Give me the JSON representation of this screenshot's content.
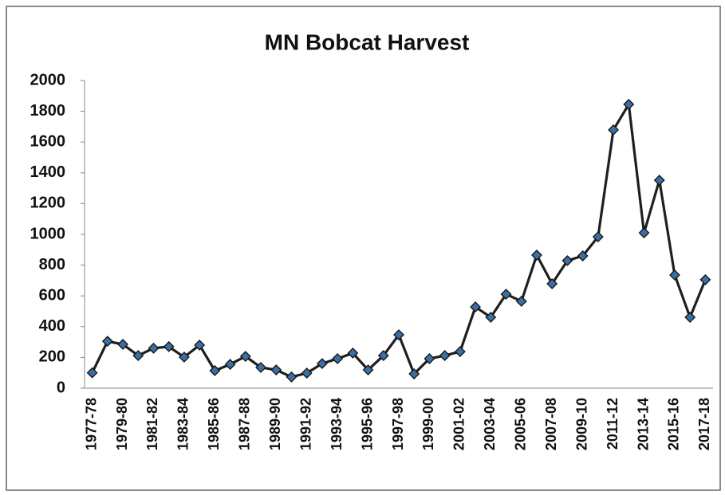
{
  "chart_data": {
    "type": "line",
    "title": "MN Bobcat Harvest",
    "categories": [
      "1977-78",
      null,
      "1979-80",
      null,
      "1981-82",
      null,
      "1983-84",
      null,
      "1985-86",
      null,
      "1987-88",
      null,
      "1989-90",
      null,
      "1991-92",
      null,
      "1993-94",
      null,
      "1995-96",
      null,
      "1997-98",
      null,
      "1999-00",
      null,
      "2001-02",
      null,
      "2003-04",
      null,
      "2005-06",
      null,
      "2007-08",
      null,
      "2009-10",
      null,
      "2011-12",
      null,
      "2013-14",
      null,
      "2015-16",
      null,
      "2017-18"
    ],
    "values": [
      100,
      305,
      285,
      212,
      260,
      270,
      202,
      280,
      114,
      155,
      207,
      135,
      119,
      73,
      98,
      160,
      192,
      228,
      119,
      212,
      347,
      93,
      192,
      212,
      238,
      528,
      461,
      611,
      565,
      865,
      679,
      829,
      860,
      984,
      1679,
      1845,
      1010,
      1352,
      736,
      461,
      705
    ],
    "color": "#1f1f1f",
    "marker_color": "#3b6ea5",
    "ylim": [
      0,
      2000
    ],
    "yticks": [
      0,
      200,
      400,
      600,
      800,
      1000,
      1200,
      1400,
      1600,
      1800,
      2000
    ],
    "grid": false
  }
}
